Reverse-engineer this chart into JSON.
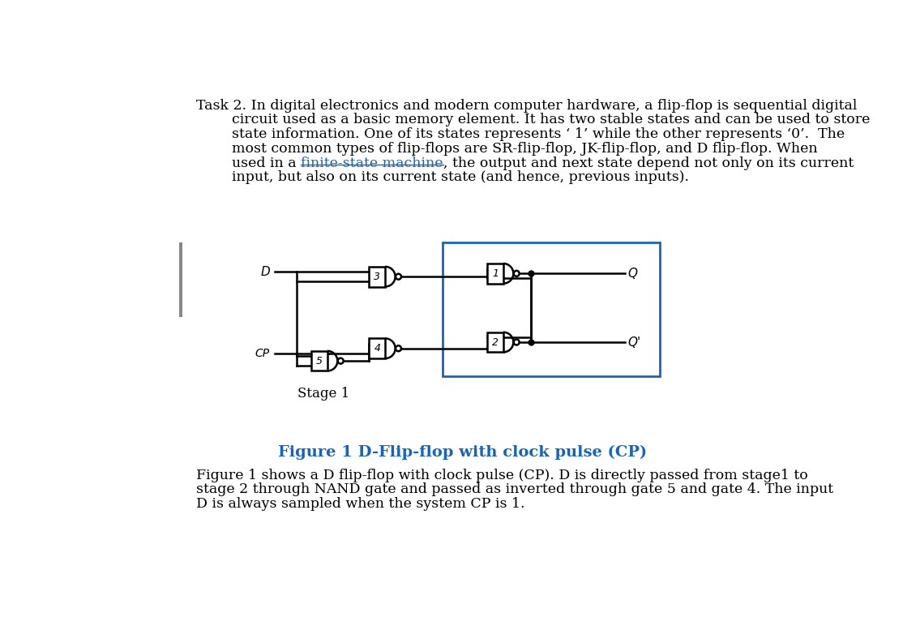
{
  "bg_color": "#ffffff",
  "figure_caption": "Figure 1 D-Flip-flop with clock pulse (CP)",
  "figure_caption_color": "#1565C0",
  "stage1_label": "Stage 1",
  "link_color": "#1565C0",
  "link_text": "finite-state machine",
  "box2_color": "#1565C0",
  "line1": "Task 2. In digital electronics and modern computer hardware, a flip-flop is sequential digital",
  "line2": "        circuit used as a basic memory element. It has two stable states and can be used to store",
  "line3": "        state information. One of its states represents ‘ 1’ while the other represents ‘0’.  The",
  "line4": "        most common types of flip-flops are SR-flip-flop, JK-flip-flop, and D flip-flop. When",
  "line5_pre": "        used in a ",
  "line5_link": "finite-state machine",
  "line5_post": ", the output and next state depend not only on its current",
  "line6": "        input, but also on its current state (and hence, previous inputs).",
  "bot1": "Figure 1 shows a D flip-flop with clock pulse (CP). D is directly passed from stage1 to",
  "bot2": "stage 2 through NAND gate and passed as inverted through gate 5 and gate 4. The input",
  "bot3": "D is always sampled when the system CP is 1."
}
